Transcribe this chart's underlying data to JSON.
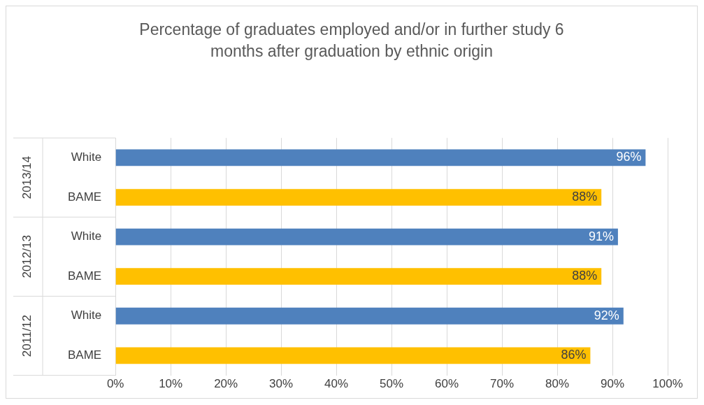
{
  "chart_data": {
    "type": "bar",
    "orientation": "horizontal",
    "title": "Percentage of graduates employed and/or in further study 6 months after graduation by ethnic origin",
    "categories": [
      "White",
      "BAME",
      "White",
      "BAME",
      "White",
      "BAME"
    ],
    "values": [
      96,
      88,
      91,
      88,
      92,
      86
    ],
    "value_labels": [
      "96%",
      "88%",
      "91%",
      "88%",
      "92%",
      "86%"
    ],
    "colors": [
      "#4f81bd",
      "#ffc000",
      "#4f81bd",
      "#ffc000",
      "#4f81bd",
      "#ffc000"
    ],
    "annotations": [
      "2013/14",
      "2012/13",
      "2011/12"
    ],
    "xlim": [
      0,
      100
    ],
    "xticks": [
      {
        "value": 0,
        "label": "0%"
      },
      {
        "value": 10,
        "label": "10%"
      },
      {
        "value": 20,
        "label": "20%"
      },
      {
        "value": 30,
        "label": "30%"
      },
      {
        "value": 40,
        "label": "40%"
      },
      {
        "value": 50,
        "label": "50%"
      },
      {
        "value": 60,
        "label": "60%"
      },
      {
        "value": 70,
        "label": "70%"
      },
      {
        "value": 80,
        "label": "80%"
      },
      {
        "value": 90,
        "label": "90%"
      },
      {
        "value": 100,
        "label": "100%"
      }
    ],
    "grid": "x",
    "legend": false
  }
}
